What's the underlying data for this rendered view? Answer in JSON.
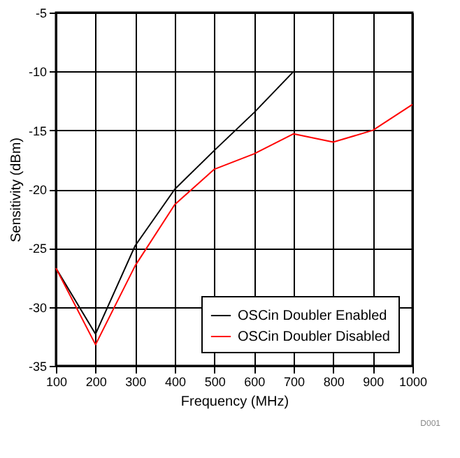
{
  "chart_data": {
    "type": "line",
    "xlabel": "Frequency (MHz)",
    "ylabel": "Sensitivity (dBm)",
    "x": [
      100,
      200,
      300,
      400,
      500,
      600,
      700,
      800,
      900,
      1000
    ],
    "series": [
      {
        "name": "OSCin Doubler Enabled",
        "color": "#000000",
        "values": [
          -26.7,
          -32.3,
          -24.8,
          -20,
          -16.7,
          -13.5,
          -10,
          null,
          null,
          null
        ]
      },
      {
        "name": "OSCin Doubler Disabled",
        "color": "#ff0000",
        "values": [
          -26.7,
          -33.2,
          -26.5,
          -21.3,
          -18.3,
          -17,
          -15.3,
          -16,
          -15,
          -12.8
        ]
      }
    ],
    "xlim": [
      100,
      1000
    ],
    "xticks": [
      100,
      200,
      300,
      400,
      500,
      600,
      700,
      800,
      900,
      1000
    ],
    "ylim": [
      -35,
      -5
    ],
    "yticks": [
      -35,
      -30,
      -25,
      -20,
      -15,
      -10,
      -5
    ],
    "grid": true,
    "legend": "bottom right",
    "marker": "none",
    "line_style": "solid",
    "annotations": [
      "D001"
    ]
  }
}
